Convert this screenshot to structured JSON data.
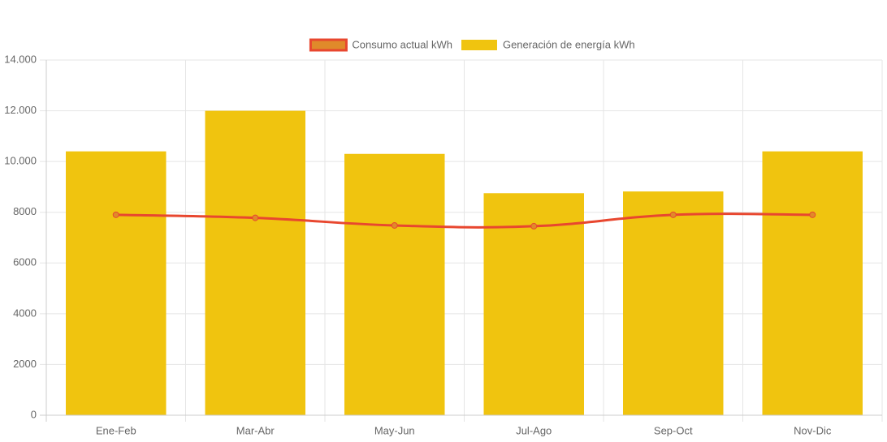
{
  "chart_data": {
    "type": "bar_line",
    "categories": [
      "Ene-Feb",
      "Mar-Abr",
      "May-Jun",
      "Jul-Ago",
      "Sep-Oct",
      "Nov-Dic"
    ],
    "series": [
      {
        "name": "Consumo actual kWh",
        "type": "line",
        "color": "#e8472f",
        "fill_color": "#e08a2a",
        "values": [
          7900,
          7780,
          7480,
          7450,
          7900,
          7900
        ]
      },
      {
        "name": "Generación de energía kWh",
        "type": "bar",
        "color": "#f0c40f",
        "values": [
          10400,
          12000,
          10300,
          8750,
          8820,
          10400
        ]
      }
    ],
    "ylim": [
      0,
      14000
    ],
    "yticks": [
      0,
      2000,
      4000,
      6000,
      8000,
      {
        "value": 10000,
        "label": "10.000"
      },
      {
        "value": 12000,
        "label": "12.000"
      },
      {
        "value": 14000,
        "label": "14.000"
      }
    ],
    "grid": true,
    "legend": "top"
  }
}
